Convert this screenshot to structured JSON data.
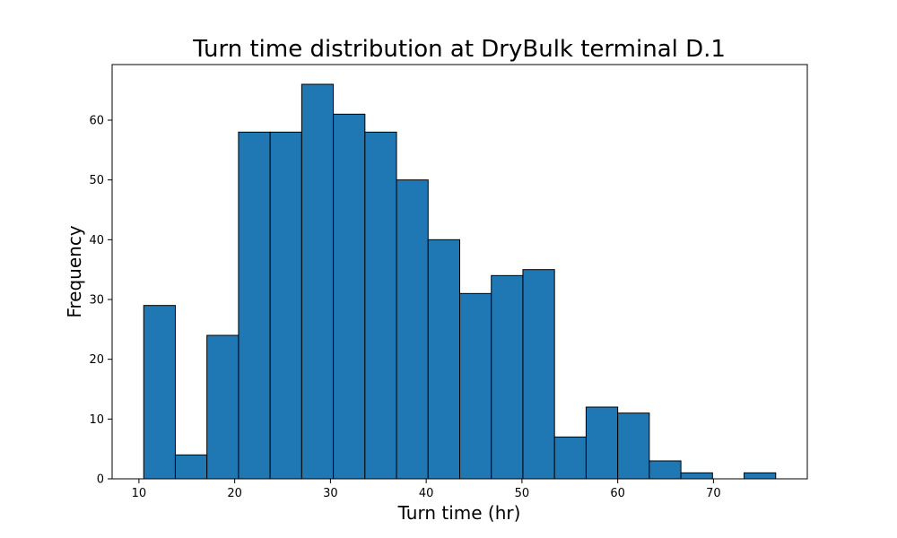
{
  "chart_data": {
    "type": "bar",
    "title": "Turn time distribution at DryBulk terminal D.1",
    "xlabel": "Turn time (hr)",
    "ylabel": "Frequency",
    "bin_start": 10.5,
    "bin_width": 3.3,
    "values": [
      29,
      4,
      24,
      58,
      58,
      66,
      61,
      58,
      50,
      40,
      31,
      34,
      35,
      7,
      12,
      11,
      3,
      1,
      0,
      1
    ],
    "xlim": [
      7.2,
      79.8
    ],
    "ylim": [
      0,
      69.3
    ],
    "xticks": [
      10,
      20,
      30,
      40,
      50,
      60,
      70
    ],
    "yticks": [
      0,
      10,
      20,
      30,
      40,
      50,
      60
    ],
    "grid": false,
    "bar_color": "#1f77b4",
    "edge_color": "#000000"
  }
}
